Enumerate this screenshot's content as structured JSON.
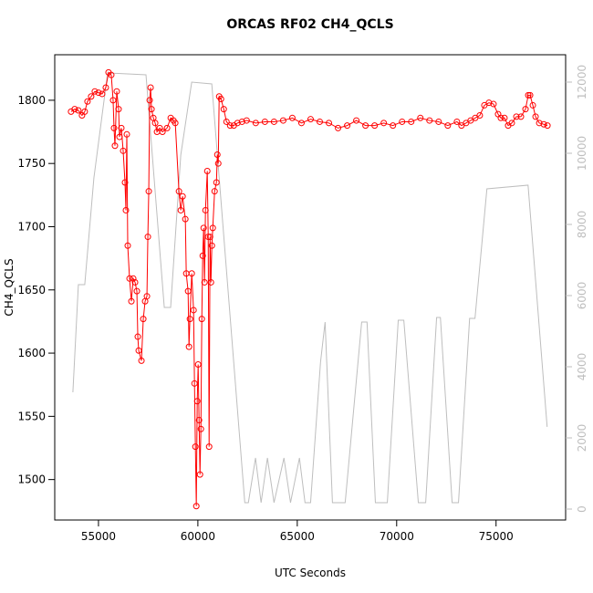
{
  "chart_data": {
    "type": "line",
    "title": "ORCAS RF02 CH4_QCLS",
    "xlabel": "UTC Seconds",
    "ylabel": "CH4_QCLS",
    "xlim": [
      52800,
      78500
    ],
    "ylim": [
      1468,
      1836
    ],
    "y2lim": [
      -308,
      12769
    ],
    "xticks": [
      55000,
      60000,
      65000,
      70000,
      75000
    ],
    "yticks": [
      1500,
      1550,
      1600,
      1650,
      1700,
      1750,
      1800
    ],
    "y2ticks": [
      0,
      2000,
      4000,
      6000,
      8000,
      10000,
      12000
    ],
    "series": [
      {
        "color": "#bebebe",
        "axis": "y2",
        "x": [
          53713,
          53989,
          54310,
          54770,
          55460,
          57390,
          58310,
          58630,
          59140,
          59690,
          60700,
          62360,
          62540,
          62900,
          63180,
          63500,
          63830,
          64330,
          64660,
          65110,
          65390,
          65670,
          66170,
          66400,
          66770,
          67410,
          68240,
          68510,
          68930,
          69530,
          70080,
          70360,
          71090,
          71460,
          72010,
          72200,
          72790,
          73110,
          73670,
          73940,
          74540,
          76610,
          77570
        ],
        "values": [
          3282,
          6308,
          6308,
          9308,
          12256,
          12205,
          5667,
          5667,
          9949,
          12000,
          11949,
          180,
          180,
          1436,
          180,
          1436,
          180,
          1436,
          180,
          1436,
          180,
          180,
          4128,
          5256,
          180,
          180,
          5256,
          5256,
          180,
          180,
          5308,
          5308,
          180,
          180,
          5385,
          5385,
          180,
          180,
          5359,
          5359,
          9000,
          9103,
          2308
        ]
      },
      {
        "color": "#ff0000",
        "markers": true,
        "x": [
          53620,
          53804,
          53988,
          54172,
          54310,
          54448,
          54632,
          54816,
          55000,
          55184,
          55368,
          55506,
          55644,
          55736,
          55782,
          55828,
          55920,
          56012,
          56058,
          56150,
          56242,
          56334,
          56380,
          56426,
          56472,
          56564,
          56656,
          56748,
          56840,
          56932,
          56978,
          57024,
          57162,
          57254,
          57346,
          57438,
          57484,
          57530,
          57576,
          57622,
          57668,
          57760,
          57852,
          57944,
          58082,
          58220,
          58450,
          58634,
          58772,
          58864,
          59048,
          59140,
          59232,
          59370,
          59416,
          59508,
          59554,
          59600,
          59692,
          59784,
          59830,
          59876,
          59922,
          59968,
          60014,
          60060,
          60106,
          60152,
          60198,
          60244,
          60290,
          60336,
          60382,
          60474,
          60520,
          60566,
          60612,
          60658,
          60704,
          60750,
          60842,
          60934,
          60980,
          61026,
          61072,
          61164,
          61302,
          61440,
          61624,
          61808,
          61992,
          62222,
          62452,
          62912,
          63372,
          63832,
          64292,
          64752,
          65212,
          65672,
          66132,
          66592,
          67052,
          67512,
          67972,
          68432,
          68892,
          69352,
          69812,
          70272,
          70732,
          71192,
          71652,
          72112,
          72572,
          73032,
          73262,
          73492,
          73722,
          73952,
          74182,
          74412,
          74642,
          74872,
          75102,
          75240,
          75424,
          75608,
          75792,
          76022,
          76252,
          76482,
          76620,
          76712,
          76850,
          76988,
          77172,
          77402,
          77586
        ],
        "values": [
          1791,
          1793,
          1792,
          1788,
          1791,
          1799,
          1803,
          1807,
          1806,
          1805,
          1810,
          1822,
          1820,
          1800,
          1778,
          1764,
          1807,
          1793,
          1771,
          1778,
          1760,
          1735,
          1713,
          1773,
          1685,
          1659,
          1641,
          1659,
          1656,
          1649,
          1613,
          1602,
          1594,
          1627,
          1641,
          1645,
          1692,
          1728,
          1800,
          1810,
          1793,
          1786,
          1782,
          1775,
          1778,
          1775,
          1778,
          1786,
          1784,
          1782,
          1728,
          1713,
          1724,
          1706,
          1663,
          1649,
          1605,
          1627,
          1663,
          1634,
          1576,
          1526,
          1479,
          1562,
          1591,
          1547,
          1504,
          1540,
          1627,
          1677,
          1699,
          1656,
          1713,
          1744,
          1692,
          1526,
          1692,
          1656,
          1685,
          1699,
          1728,
          1735,
          1757,
          1750,
          1803,
          1801,
          1793,
          1783,
          1780,
          1780,
          1782,
          1783,
          1784,
          1782,
          1783,
          1783,
          1784,
          1786,
          1782,
          1785,
          1783,
          1782,
          1778,
          1780,
          1784,
          1780,
          1780,
          1782,
          1780,
          1783,
          1783,
          1786,
          1784,
          1783,
          1780,
          1783,
          1780,
          1782,
          1784,
          1786,
          1788,
          1796,
          1798,
          1797,
          1789,
          1786,
          1786,
          1780,
          1782,
          1787,
          1787,
          1793,
          1804,
          1804,
          1796,
          1787,
          1782,
          1781,
          1780
        ]
      }
    ]
  }
}
